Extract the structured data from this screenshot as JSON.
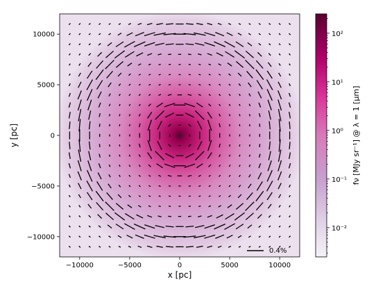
{
  "chart_data": {
    "type": "heatmap",
    "subtype": "polarization vector map over intensity image",
    "xlabel": "x [pc]",
    "ylabel": "y [pc]",
    "xlim": [
      -12000,
      12000
    ],
    "ylim": [
      -12000,
      12000
    ],
    "x_ticks": [
      -10000,
      -5000,
      0,
      5000,
      10000
    ],
    "y_ticks": [
      -10000,
      -5000,
      0,
      5000,
      10000
    ],
    "x_tick_labels": [
      "−10000",
      "−5000",
      "0",
      "5000",
      "10000"
    ],
    "y_tick_labels": [
      "−10000",
      "−5000",
      "0",
      "5000",
      "10000"
    ],
    "colorbar": {
      "label": "fν [MJy sr⁻¹] @ λ = 1 [μm]",
      "scale": "log",
      "range": [
        0.0025,
        250
      ],
      "tick_labels": [
        "10⁻²",
        "10⁻¹",
        "10⁰",
        "10¹",
        "10²"
      ],
      "tick_values": [
        0.01,
        0.1,
        1,
        10,
        100
      ],
      "colors": [
        "#f2eef5",
        "#c9a3cc",
        "#d33f99",
        "#b8006e",
        "#67001f"
      ]
    },
    "image": {
      "peak_position": [
        0,
        0
      ],
      "peak_value": 100,
      "core_radius_pc": 4500,
      "disk_radius_pc": 11000
    },
    "vector_grid": {
      "spacing_pc": 1000,
      "extent_pc": 11000,
      "orientation": "azimuthal (perpendicular to radius from center)",
      "rings_of_high_polarization_pc": [
        2800,
        10000
      ]
    },
    "scale_bar": {
      "label": "0.4%"
    }
  }
}
